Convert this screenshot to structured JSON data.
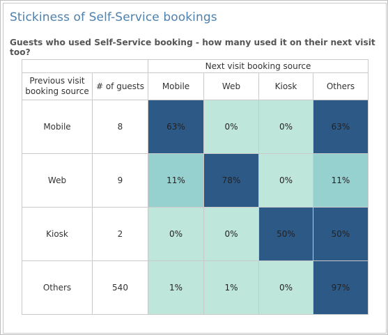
{
  "title": "Stickiness of Self-Service bookings",
  "subtitle": "Guests who used Self-Service booking - how many used it on their next visit too?",
  "table": {
    "group_header": "Next visit booking source",
    "row_header": "Previous visit booking source",
    "count_header": "# of guests"
  },
  "colors": {
    "high": "#2d5986",
    "mid": "#96d1d0",
    "low": "#bee6da",
    "text_dark_cell": "#222222"
  },
  "chart_data": {
    "type": "heatmap",
    "title": "Stickiness of Self-Service bookings",
    "subtitle": "Guests who used Self-Service booking - how many used it on their next visit too?",
    "columns": [
      "Mobile",
      "Web",
      "Kiosk",
      "Others"
    ],
    "rows": [
      {
        "label": "Mobile",
        "guests": "8",
        "values": [
          "63%",
          "0%",
          "0%",
          "63%"
        ],
        "levels": [
          0.63,
          0.0,
          0.0,
          0.63
        ]
      },
      {
        "label": "Web",
        "guests": "9",
        "values": [
          "11%",
          "78%",
          "0%",
          "11%"
        ],
        "levels": [
          0.11,
          0.78,
          0.0,
          0.11
        ]
      },
      {
        "label": "Kiosk",
        "guests": "2",
        "values": [
          "0%",
          "0%",
          "50%",
          "50%"
        ],
        "levels": [
          0.0,
          0.0,
          0.5,
          0.5
        ]
      },
      {
        "label": "Others",
        "guests": "540",
        "values": [
          "1%",
          "1%",
          "0%",
          "97%"
        ],
        "levels": [
          0.01,
          0.01,
          0.0,
          0.97
        ]
      }
    ]
  }
}
